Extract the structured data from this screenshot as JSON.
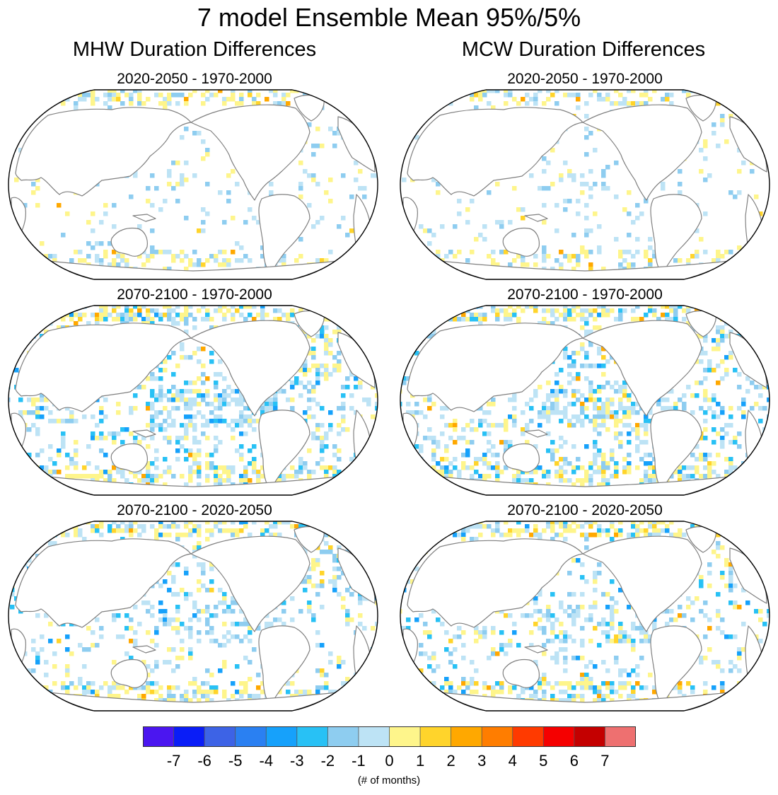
{
  "figure": {
    "title": "7 model Ensemble Mean 95%/5%",
    "columns": [
      {
        "title": "MHW Duration Differences"
      },
      {
        "title": "MCW Duration Differences"
      }
    ],
    "panels": [
      {
        "title": "2020-2050 - 1970-2000"
      },
      {
        "title": "2020-2050 - 1970-2000"
      },
      {
        "title": "2070-2100 - 1970-2000"
      },
      {
        "title": "2070-2100 - 1970-2000"
      },
      {
        "title": "2070-2100 - 2020-2050"
      },
      {
        "title": "2070-2100 - 2020-2050"
      }
    ]
  },
  "colorbar": {
    "labels": [
      "-7",
      "-6",
      "-5",
      "-4",
      "-3",
      "-2",
      "-1",
      "0",
      "1",
      "2",
      "3",
      "4",
      "5",
      "6",
      "7"
    ],
    "colors": [
      "#4b16f0",
      "#0a1df7",
      "#3d63e6",
      "#2a80f2",
      "#16a1fb",
      "#28c1f5",
      "#8ecdf0",
      "#bde3f5",
      "#fef58b",
      "#ffd42b",
      "#ffa800",
      "#ff7d00",
      "#ff3a00",
      "#f50000",
      "#c40000",
      "#ee7070"
    ],
    "units": "(# of months)"
  },
  "colors": {
    "land_outline": "#808080",
    "map_border": "#000000",
    "background": "#ffffff"
  }
}
